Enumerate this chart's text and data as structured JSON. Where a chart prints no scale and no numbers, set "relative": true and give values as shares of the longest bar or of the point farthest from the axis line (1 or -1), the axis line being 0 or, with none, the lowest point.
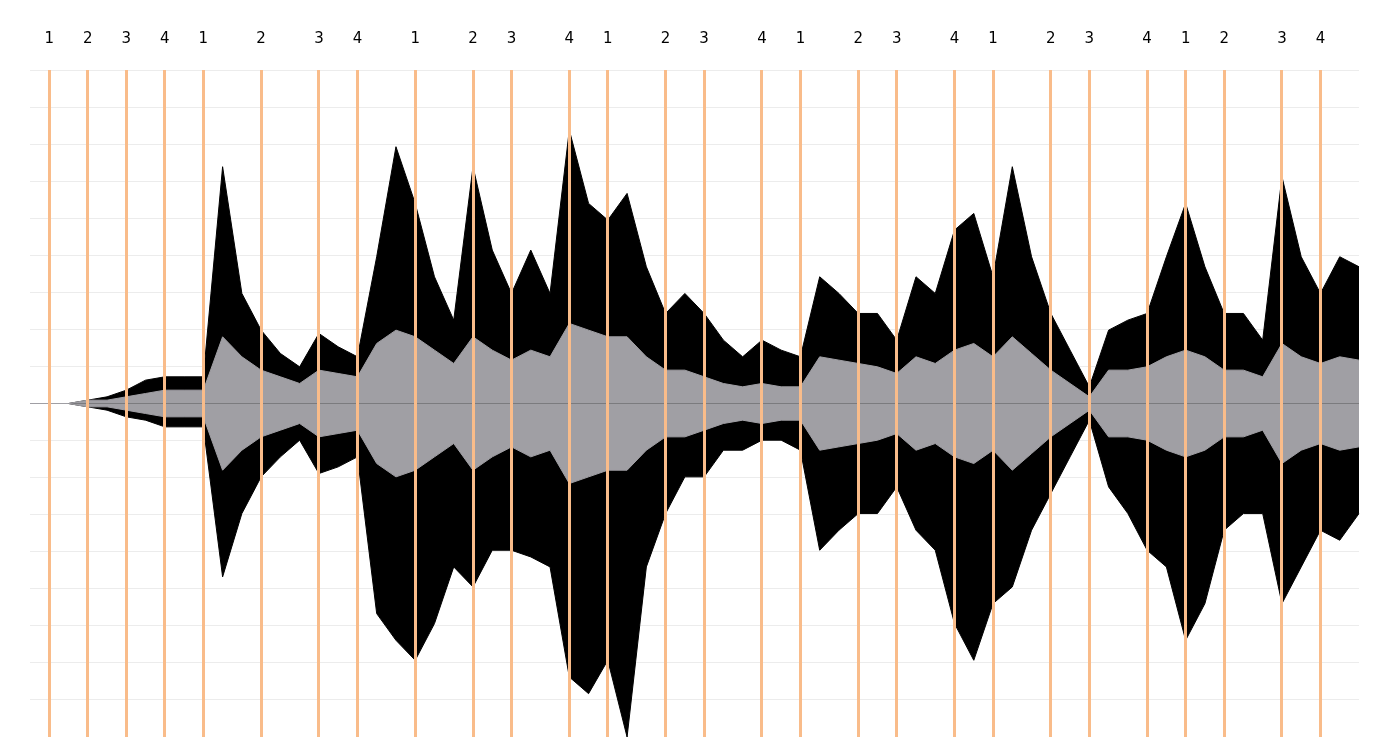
{
  "chart_data": {
    "type": "area",
    "relative": true,
    "grid": true,
    "categories": [
      null,
      "1",
      null,
      "2",
      null,
      "3",
      null,
      "4",
      null,
      "1",
      null,
      null,
      "2",
      null,
      null,
      "3",
      null,
      "4",
      null,
      null,
      "1",
      null,
      null,
      "2",
      null,
      "3",
      null,
      null,
      "4",
      null,
      "1",
      null,
      null,
      "2",
      null,
      "3",
      null,
      null,
      "4",
      null,
      "1",
      null,
      null,
      "2",
      null,
      "3",
      null,
      null,
      "4",
      null,
      "1",
      null,
      null,
      "2",
      null,
      "3",
      null,
      null,
      "4",
      null,
      "1",
      null,
      "2",
      null,
      null,
      "3",
      null,
      "4",
      null,
      null
    ],
    "series": [
      {
        "color": "#000000",
        "values": [
          0,
          0,
          0,
          0.01,
          0.02,
          0.04,
          0.07,
          0.08,
          0.08,
          0.08,
          0.71,
          0.33,
          0.22,
          0.15,
          0.11,
          0.21,
          0.17,
          0.14,
          0.44,
          0.77,
          0.6,
          0.38,
          0.25,
          0.71,
          0.46,
          0.33,
          0.46,
          0.33,
          0.82,
          0.6,
          0.55,
          0.63,
          0.41,
          0.27,
          0.33,
          0.27,
          0.19,
          0.14,
          0.19,
          0.16,
          0.14,
          0.38,
          0.33,
          0.27,
          0.27,
          0.19,
          0.38,
          0.33,
          0.52,
          0.57,
          0.38,
          0.71,
          0.44,
          0.27,
          0.16,
          0.05,
          0.22,
          0.25,
          0.27,
          0.44,
          0.6,
          0.41,
          0.27,
          0.27,
          0.19,
          0.68,
          0.44,
          0.33,
          0.44,
          0.41
        ]
      },
      {
        "color": "#000000",
        "values": [
          0,
          0,
          0,
          -0.01,
          -0.02,
          -0.04,
          -0.05,
          -0.07,
          -0.07,
          -0.07,
          -0.52,
          -0.33,
          -0.22,
          -0.16,
          -0.11,
          -0.21,
          -0.19,
          -0.16,
          -0.63,
          -0.71,
          -0.77,
          -0.66,
          -0.49,
          -0.55,
          -0.44,
          -0.44,
          -0.46,
          -0.49,
          -0.82,
          -0.87,
          -0.77,
          -1,
          -0.49,
          -0.33,
          -0.22,
          -0.22,
          -0.14,
          -0.14,
          -0.11,
          -0.11,
          -0.14,
          -0.44,
          -0.38,
          -0.33,
          -0.33,
          -0.25,
          -0.38,
          -0.44,
          -0.66,
          -0.77,
          -0.6,
          -0.55,
          -0.38,
          -0.27,
          -0.16,
          -0.05,
          -0.25,
          -0.33,
          -0.44,
          -0.49,
          -0.71,
          -0.6,
          -0.38,
          -0.33,
          -0.33,
          -0.6,
          -0.49,
          -0.38,
          -0.41,
          -0.33
        ]
      },
      {
        "color": "#a09fa4",
        "values": [
          0,
          0,
          0,
          0.01,
          0.01,
          0.02,
          0.03,
          0.04,
          0.04,
          0.04,
          0.2,
          0.14,
          0.1,
          0.08,
          0.06,
          0.1,
          0.09,
          0.08,
          0.18,
          0.22,
          0.2,
          0.16,
          0.12,
          0.2,
          0.16,
          0.13,
          0.16,
          0.14,
          0.24,
          0.22,
          0.2,
          0.2,
          0.14,
          0.1,
          0.1,
          0.08,
          0.06,
          0.05,
          0.06,
          0.05,
          0.05,
          0.14,
          0.13,
          0.12,
          0.11,
          0.09,
          0.14,
          0.12,
          0.16,
          0.18,
          0.14,
          0.2,
          0.15,
          0.1,
          0.06,
          0.02,
          0.1,
          0.1,
          0.11,
          0.14,
          0.16,
          0.14,
          0.1,
          0.1,
          0.08,
          0.18,
          0.14,
          0.12,
          0.14,
          0.13
        ]
      },
      {
        "color": "#a09fa4",
        "values": [
          0,
          0,
          0,
          -0.01,
          -0.01,
          -0.02,
          -0.03,
          -0.04,
          -0.04,
          -0.04,
          -0.2,
          -0.14,
          -0.1,
          -0.08,
          -0.06,
          -0.1,
          -0.09,
          -0.08,
          -0.18,
          -0.22,
          -0.2,
          -0.16,
          -0.12,
          -0.2,
          -0.16,
          -0.13,
          -0.16,
          -0.14,
          -0.24,
          -0.22,
          -0.2,
          -0.2,
          -0.14,
          -0.1,
          -0.1,
          -0.08,
          -0.06,
          -0.05,
          -0.06,
          -0.05,
          -0.05,
          -0.14,
          -0.13,
          -0.12,
          -0.11,
          -0.09,
          -0.14,
          -0.12,
          -0.16,
          -0.18,
          -0.14,
          -0.2,
          -0.15,
          -0.1,
          -0.06,
          -0.02,
          -0.1,
          -0.1,
          -0.11,
          -0.14,
          -0.16,
          -0.14,
          -0.1,
          -0.1,
          -0.08,
          -0.18,
          -0.14,
          -0.12,
          -0.14,
          -0.13
        ]
      }
    ]
  }
}
